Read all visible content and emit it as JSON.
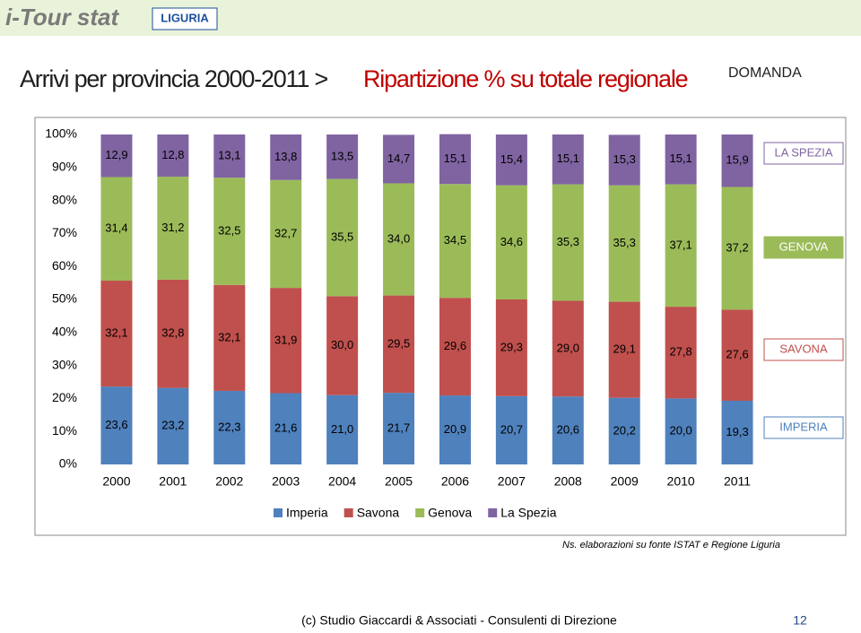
{
  "header": {
    "logo": "i-Tour stat",
    "region": "LIGURIA",
    "title_main": "Arrivi per provincia  2000-2011 >",
    "title_highlight": "Ripartizione % su totale regionale",
    "section": "DOMANDA"
  },
  "chart_data": {
    "type": "stacked_bar",
    "categories": [
      "2000",
      "2001",
      "2002",
      "2003",
      "2004",
      "2005",
      "2006",
      "2007",
      "2008",
      "2009",
      "2010",
      "2011"
    ],
    "series": [
      {
        "name": "Imperia",
        "color": "#4f81bd",
        "values": [
          23.6,
          23.2,
          22.3,
          21.6,
          21.0,
          21.7,
          20.9,
          20.7,
          20.6,
          20.2,
          20.0,
          19.3
        ],
        "value_labels": [
          "23,6",
          "23,2",
          "22,3",
          "21,6",
          "21,0",
          "21,7",
          "20,9",
          "20,7",
          "20,6",
          "20,2",
          "20,0",
          "19,3"
        ]
      },
      {
        "name": "Savona",
        "color": "#c0504d",
        "values": [
          32.1,
          32.8,
          32.1,
          31.9,
          30.0,
          29.5,
          29.6,
          29.3,
          29.0,
          29.1,
          27.8,
          27.6
        ],
        "value_labels": [
          "32,1",
          "32,8",
          "32,1",
          "31,9",
          "30,0",
          "29,5",
          "29,6",
          "29,3",
          "29,0",
          "29,1",
          "27,8",
          "27,6"
        ]
      },
      {
        "name": "Genova",
        "color": "#9bbb59",
        "values": [
          31.4,
          31.2,
          32.5,
          32.7,
          35.5,
          34.0,
          34.5,
          34.6,
          35.3,
          35.3,
          37.1,
          37.2
        ],
        "value_labels": [
          "31,4",
          "31,2",
          "32,5",
          "32,7",
          "35,5",
          "34,0",
          "34,5",
          "34,6",
          "35,3",
          "35,3",
          "37,1",
          "37,2"
        ]
      },
      {
        "name": "La Spezia",
        "color": "#8064a2",
        "values": [
          12.9,
          12.8,
          13.1,
          13.8,
          13.5,
          14.7,
          15.1,
          15.4,
          15.1,
          15.3,
          15.1,
          15.9
        ],
        "value_labels": [
          "12,9",
          "12,8",
          "13,1",
          "13,8",
          "13,5",
          "14,7",
          "15,1",
          "15,4",
          "15,1",
          "15,3",
          "15,1",
          "15,9"
        ]
      }
    ],
    "ylim": [
      0,
      100
    ],
    "yticks": [
      {
        "value": 0,
        "label": "0%"
      },
      {
        "value": 10,
        "label": "10%"
      },
      {
        "value": 20,
        "label": "20%"
      },
      {
        "value": 30,
        "label": "30%"
      },
      {
        "value": 40,
        "label": "40%"
      },
      {
        "value": 50,
        "label": "50%"
      },
      {
        "value": 60,
        "label": "60%"
      },
      {
        "value": 70,
        "label": "70%"
      },
      {
        "value": 80,
        "label": "80%"
      },
      {
        "value": 90,
        "label": "90%"
      },
      {
        "value": 100,
        "label": "100%"
      }
    ],
    "legend": "bottom",
    "side_labels": [
      "LA SPEZIA",
      "GENOVA",
      "SAVONA",
      "IMPERIA"
    ]
  },
  "note": "Ns. elaborazioni su fonte ISTAT e Regione Liguria",
  "footer": {
    "credit": "(c) Studio Giaccardi & Associati - Consulenti di Direzione",
    "page": "12"
  }
}
